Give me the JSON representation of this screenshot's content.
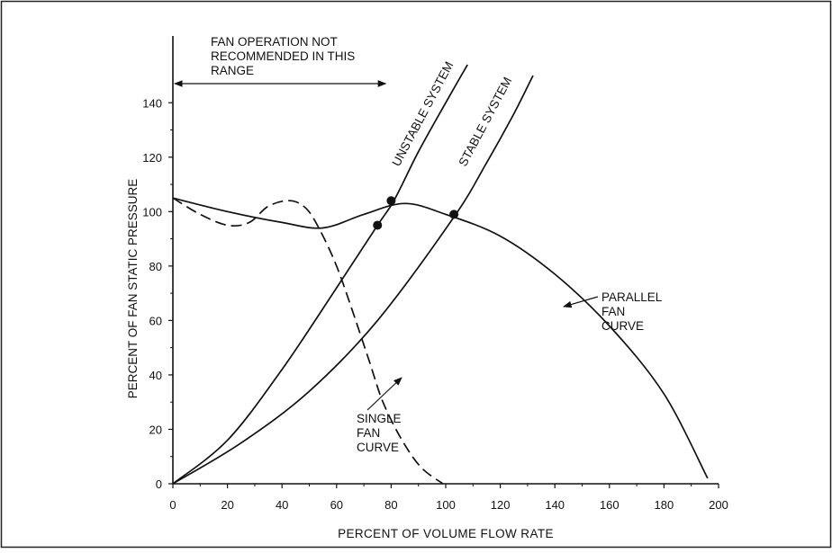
{
  "chart_data": {
    "type": "line",
    "xlabel": "PERCENT OF VOLUME FLOW RATE",
    "ylabel": "PERCENT OF FAN STATIC PRESSURE",
    "xlim": [
      0,
      200
    ],
    "ylim": [
      0,
      150
    ],
    "x_ticks": [
      "0",
      "20",
      "40",
      "60",
      "80",
      "100",
      "120",
      "140",
      "160",
      "180",
      "200"
    ],
    "y_ticks": [
      "0",
      "20",
      "40",
      "60",
      "80",
      "100",
      "120",
      "140"
    ],
    "grid": false,
    "series": [
      {
        "name": "SINGLE FAN CURVE",
        "style": "dashed",
        "points": [
          [
            0,
            105
          ],
          [
            10,
            99
          ],
          [
            20,
            95
          ],
          [
            28,
            96
          ],
          [
            35,
            102
          ],
          [
            43,
            104
          ],
          [
            49,
            101
          ],
          [
            54,
            93
          ],
          [
            60,
            80
          ],
          [
            66,
            63
          ],
          [
            72,
            45
          ],
          [
            77,
            30
          ],
          [
            84,
            16
          ],
          [
            91,
            6
          ],
          [
            99,
            0
          ]
        ]
      },
      {
        "name": "PARALLEL FAN CURVE",
        "style": "solid",
        "points": [
          [
            0,
            105
          ],
          [
            20,
            100
          ],
          [
            40,
            96
          ],
          [
            55,
            94
          ],
          [
            70,
            99
          ],
          [
            85,
            103
          ],
          [
            100,
            99
          ],
          [
            120,
            91
          ],
          [
            140,
            77
          ],
          [
            160,
            58
          ],
          [
            180,
            33
          ],
          [
            196,
            2
          ]
        ]
      },
      {
        "name": "UNSTABLE SYSTEM",
        "style": "solid",
        "points": [
          [
            0,
            0
          ],
          [
            20,
            16
          ],
          [
            40,
            42
          ],
          [
            60,
            72
          ],
          [
            75,
            95
          ],
          [
            81,
            104
          ],
          [
            90,
            122
          ],
          [
            100,
            140
          ],
          [
            108,
            154
          ]
        ]
      },
      {
        "name": "STABLE SYSTEM",
        "style": "solid",
        "points": [
          [
            0,
            0
          ],
          [
            25,
            15
          ],
          [
            50,
            34
          ],
          [
            75,
            60
          ],
          [
            103,
            98
          ],
          [
            115,
            118
          ],
          [
            125,
            136
          ],
          [
            132,
            150
          ]
        ]
      }
    ],
    "operating_points": [
      [
        75,
        95
      ],
      [
        80,
        104
      ],
      [
        103,
        99
      ]
    ],
    "annotations": {
      "not_recommended": [
        "FAN OPERATION NOT",
        "RECOMMENDED IN THIS",
        "RANGE"
      ],
      "not_recommended_range": [
        0,
        78
      ],
      "unstable_label": "UNSTABLE SYSTEM",
      "stable_label": "STABLE SYSTEM",
      "parallel_label": [
        "PARALLEL",
        "FAN",
        "CURVE"
      ],
      "single_label": [
        "SINGLE",
        "FAN",
        "CURVE"
      ]
    }
  }
}
